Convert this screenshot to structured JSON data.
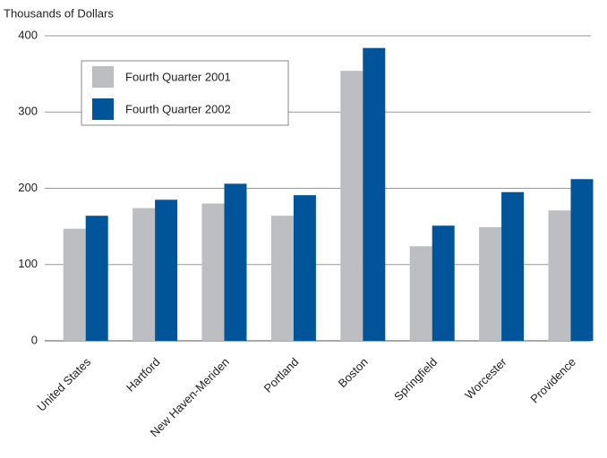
{
  "chart_data": {
    "type": "bar",
    "ylabel": "Thousands of Dollars",
    "categories": [
      "United States",
      "Hartford",
      "New Haven-Meriden",
      "Portland",
      "Boston",
      "Springfield",
      "Worcester",
      "Providence"
    ],
    "series": [
      {
        "name": "Fourth Quarter 2001",
        "color": "#bdbec1",
        "values": [
          147,
          174,
          180,
          164,
          354,
          124,
          149,
          171
        ]
      },
      {
        "name": "Fourth Quarter 2002",
        "color": "#00549a",
        "values": [
          164,
          185,
          206,
          191,
          384,
          151,
          195,
          212
        ]
      }
    ],
    "ylim": [
      0,
      400
    ],
    "yticks": [
      0,
      100,
      200,
      300,
      400
    ],
    "grid": true,
    "legend": "upper left"
  }
}
